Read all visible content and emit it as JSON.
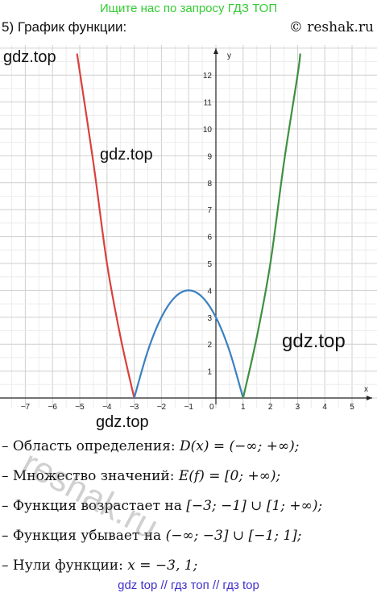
{
  "banner": "Ищите нас по запросу ГДЗ ТОП",
  "header": {
    "title": "5) График функции:",
    "copyright": "© reshak.ru"
  },
  "watermarks": {
    "top_left": "gdz.top",
    "mid_left": "gdz.top",
    "right": "gdz.top",
    "bottom_left": "gdz.top",
    "diagonal": "reshak.ru"
  },
  "chart_data": {
    "type": "line",
    "xlabel": "x",
    "ylabel": "y",
    "xlim": [
      -7.8,
      5.8
    ],
    "ylim": [
      0,
      12.8
    ],
    "x_ticks": [
      -7,
      -6,
      -5,
      -4,
      -3,
      -2,
      -1,
      0,
      1,
      2,
      3,
      4,
      5
    ],
    "y_ticks": [
      1,
      2,
      3,
      4,
      5,
      6,
      7,
      8,
      9,
      10,
      11,
      12
    ],
    "grid": true,
    "series": [
      {
        "color": "#d9413d",
        "x": [
          -5.1,
          -4.5,
          -4,
          -3.5,
          -3
        ],
        "y": [
          12.8,
          8.75,
          5,
          2.25,
          0
        ]
      },
      {
        "color": "#3a80c0",
        "x": [
          -3,
          -2.5,
          -2,
          -1.5,
          -1,
          -0.5,
          0,
          0.5,
          1
        ],
        "y": [
          0,
          1.75,
          3,
          3.75,
          4,
          3.75,
          3,
          1.75,
          0
        ]
      },
      {
        "color": "#3e9040",
        "x": [
          1,
          1.5,
          2,
          2.5,
          3,
          3.1
        ],
        "y": [
          0,
          2.25,
          5,
          8.75,
          12,
          12.8
        ]
      }
    ]
  },
  "facts": [
    {
      "label": "– Область определения:",
      "formula": "D(x) = (−∞; +∞);"
    },
    {
      "label": "– Множество значений:",
      "formula": "E(f) = [0; +∞);"
    },
    {
      "label": "– Функция возрастает на",
      "formula": "[−3; −1] ∪ [1; +∞);"
    },
    {
      "label": "– Функция убывает на",
      "formula": "(−∞; −3] ∪ [−1; 1];"
    },
    {
      "label": "– Нули функции:",
      "formula": "x = −3,  1;"
    }
  ],
  "footer": "gdz top  //  гдз топ  //  гдз top"
}
